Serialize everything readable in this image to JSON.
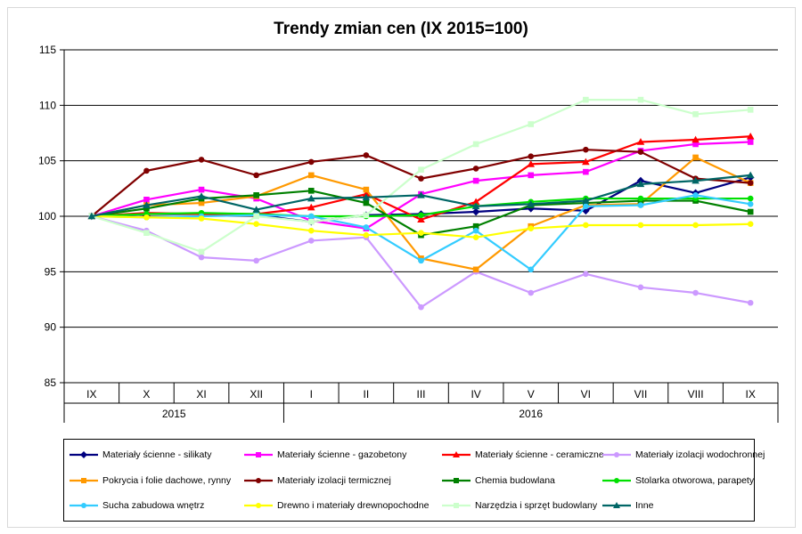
{
  "chart_data": {
    "type": "line",
    "title": "Trendy zmian cen (IX 2015=100)",
    "categories": [
      "IX",
      "X",
      "XI",
      "XII",
      "I",
      "II",
      "III",
      "IV",
      "V",
      "VI",
      "VII",
      "VIII",
      "IX"
    ],
    "year_groups": [
      {
        "label": "2015",
        "months": 4
      },
      {
        "label": "2016",
        "months": 9
      }
    ],
    "ylim": [
      85,
      115
    ],
    "yticks": [
      85,
      90,
      95,
      100,
      105,
      110,
      115
    ],
    "grid": "horizontal",
    "legend_position": "bottom",
    "series": [
      {
        "name": "Materiały ścienne - silikaty",
        "color": "#000080",
        "marker": "diamond",
        "values": [
          100,
          100.2,
          100.2,
          100.1,
          99.5,
          100.1,
          100.2,
          100.4,
          100.7,
          100.5,
          103.2,
          102.1,
          103.5
        ]
      },
      {
        "name": "Materiały ścienne - gazobetony",
        "color": "#ff00ff",
        "marker": "square",
        "values": [
          100,
          101.5,
          102.4,
          101.6,
          99.6,
          98.9,
          102.0,
          103.2,
          103.7,
          104.0,
          105.9,
          106.5,
          106.7
        ]
      },
      {
        "name": "Materiały ścienne - ceramiczne",
        "color": "#ff0000",
        "marker": "triangle",
        "values": [
          100,
          100.3,
          100.2,
          100.2,
          100.8,
          102.0,
          99.7,
          101.3,
          104.7,
          104.9,
          106.7,
          106.9,
          107.2
        ]
      },
      {
        "name": "Materiały izolacji wodochronnej",
        "color": "#cc99ff",
        "marker": "circle",
        "values": [
          100,
          98.7,
          96.3,
          96.0,
          97.8,
          98.1,
          91.8,
          95.0,
          93.1,
          94.8,
          93.6,
          93.1,
          92.2
        ]
      },
      {
        "name": "Pokrycia i folie dachowe, rynny",
        "color": "#ff9900",
        "marker": "square",
        "values": [
          100,
          101.0,
          101.2,
          101.8,
          103.7,
          102.4,
          96.2,
          95.2,
          99.1,
          101.0,
          101.1,
          105.3,
          103.0
        ]
      },
      {
        "name": "Materiały izolacji termicznej",
        "color": "#800000",
        "marker": "circle",
        "values": [
          100,
          104.1,
          105.1,
          103.7,
          104.9,
          105.5,
          103.4,
          104.3,
          105.4,
          106.0,
          105.8,
          103.4,
          103.0
        ]
      },
      {
        "name": "Chemia budowlana",
        "color": "#008000",
        "marker": "square",
        "values": [
          100,
          100.7,
          101.6,
          101.9,
          102.3,
          101.2,
          98.3,
          99.1,
          101.0,
          101.2,
          101.4,
          101.4,
          100.4
        ]
      },
      {
        "name": "Stolarka otworowa, parapety",
        "color": "#00e000",
        "marker": "circle",
        "values": [
          100,
          100.2,
          100.3,
          100.2,
          100.0,
          100.0,
          100.1,
          100.9,
          101.3,
          101.6,
          101.6,
          101.6,
          101.6
        ]
      },
      {
        "name": "Sucha zabudowa wnętrz",
        "color": "#33ccff",
        "marker": "circle",
        "values": [
          100,
          99.9,
          100.0,
          100.1,
          100.0,
          99.0,
          96.0,
          98.7,
          95.2,
          100.9,
          101.0,
          101.9,
          101.1
        ]
      },
      {
        "name": "Drewno i materiały drewnopochodne",
        "color": "#ffff00",
        "marker": "circle",
        "values": [
          100,
          99.9,
          99.8,
          99.3,
          98.7,
          98.3,
          98.5,
          98.1,
          98.9,
          99.2,
          99.2,
          99.2,
          99.3
        ]
      },
      {
        "name": "Narzędzia i sprzęt budowlany",
        "color": "#ccffcc",
        "marker": "square",
        "values": [
          100,
          98.5,
          96.8,
          100.0,
          99.5,
          100.1,
          104.2,
          106.5,
          108.3,
          110.5,
          110.5,
          109.2,
          109.6
        ]
      },
      {
        "name": "Inne",
        "color": "#006666",
        "marker": "triangle",
        "values": [
          100,
          101.0,
          101.8,
          100.6,
          101.6,
          101.7,
          101.9,
          100.9,
          101.1,
          101.4,
          102.9,
          103.2,
          103.7
        ]
      }
    ]
  }
}
